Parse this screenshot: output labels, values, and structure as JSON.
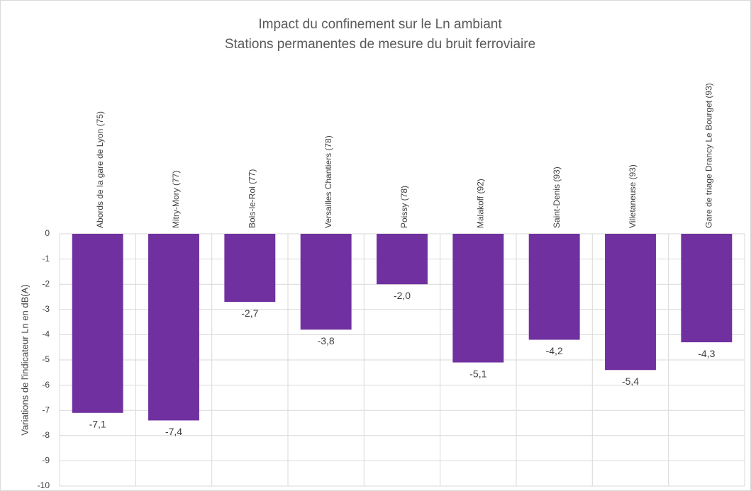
{
  "chart_data": {
    "type": "bar",
    "title": "Impact du confinement sur le Ln ambiant",
    "subtitle": "Stations permanentes  de mesure du bruit ferroviaire",
    "y_label": "Variations de l'indicateur Ln en dB(A)",
    "categories": [
      "Abords de la gare de Lyon (75)",
      "Mitry-Mory (77)",
      "Bois-le-Roi (77)",
      "Versailles Chantiers (78)",
      "Poissy (78)",
      "Malakoff (92)",
      "Saint-Denis (93)",
      "Villetaneuse (93)",
      "Gare de triage Drancy Le Bourget (93)"
    ],
    "values": [
      -7.1,
      -7.4,
      -2.7,
      -3.8,
      -2.0,
      -5.1,
      -4.2,
      -5.4,
      -4.3
    ],
    "value_labels": [
      "-7,1",
      "-7,4",
      "-2,7",
      "-3,8",
      "-2,0",
      "-5,1",
      "-4,2",
      "-5,4",
      "-4,3"
    ],
    "color": "#7030a0",
    "ylim": [
      -10,
      0
    ],
    "yticks": [
      0,
      -1,
      -2,
      -3,
      -4,
      -5,
      -6,
      -7,
      -8,
      -9,
      -10
    ],
    "grid": true
  }
}
